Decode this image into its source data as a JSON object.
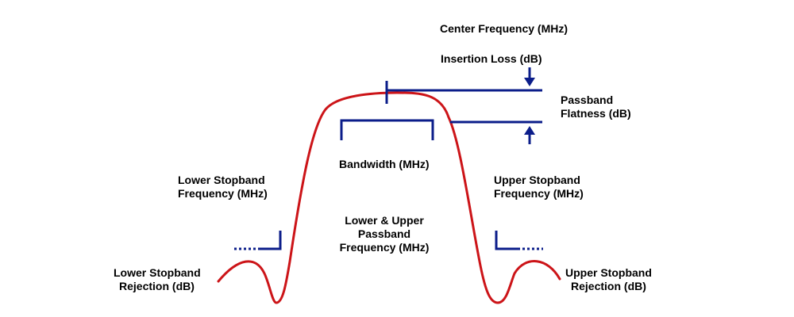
{
  "colors": {
    "response_curve": "#cc1418",
    "markers": "#0b1d8a",
    "text": "#000000",
    "background": "#ffffff"
  },
  "labels": {
    "center_frequency": "Center Frequency (MHz)",
    "insertion_loss": "Insertion Loss (dB)",
    "passband_flatness": [
      "Passband",
      "Flatness (dB)"
    ],
    "bandwidth": "Bandwidth (MHz)",
    "lower_stopband_frequency": [
      "Lower Stopband",
      "Frequency (MHz)"
    ],
    "upper_stopband_frequency": [
      "Upper Stopband",
      "Frequency (MHz)"
    ],
    "passband_frequency": [
      "Lower & Upper",
      "Passband",
      "Frequency (MHz)"
    ],
    "lower_stopband_rejection": [
      "Lower Stopband",
      "Rejection (dB)"
    ],
    "upper_stopband_rejection": [
      "Upper Stopband",
      "Rejection (dB)"
    ]
  },
  "icons": {
    "insertion_loss_arrow": "arrow-down-icon",
    "flatness_arrow": "arrow-up-icon"
  }
}
